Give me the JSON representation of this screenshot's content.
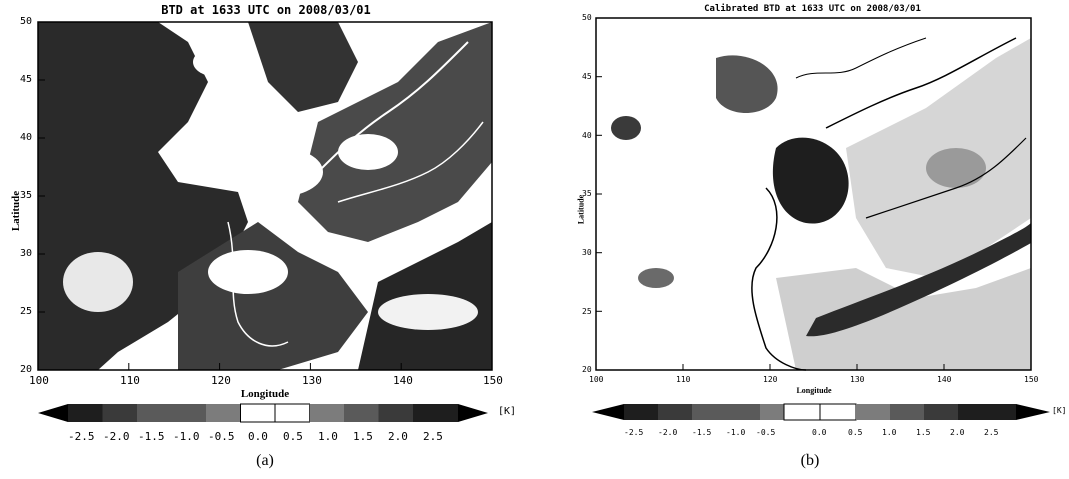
{
  "panels": [
    {
      "id": "a",
      "title": "BTD at 1633 UTC on 2008/03/01",
      "xlabel": "Longitude",
      "ylabel": "Latitude",
      "panel_label": "(a)",
      "x_ticks": [
        "100",
        "110",
        "120",
        "130",
        "140",
        "150"
      ],
      "y_ticks": [
        "20",
        "25",
        "30",
        "35",
        "40",
        "45",
        "50"
      ],
      "colorbar_ticks": [
        "-2.5",
        "-2.0",
        "-1.5",
        "-1.0",
        "-0.5",
        "0.0",
        "0.5",
        "1.0",
        "1.5",
        "2.0",
        "2.5"
      ],
      "colorbar_unit": "[K]",
      "map_extent": {
        "lon": [
          100,
          150
        ],
        "lat": [
          20,
          50
        ]
      }
    },
    {
      "id": "b",
      "title": "Calibrated BTD at 1633 UTC on 2008/03/01",
      "xlabel": "Longitude",
      "ylabel": "Latitude",
      "panel_label": "(b)",
      "x_ticks": [
        "100",
        "110",
        "120",
        "130",
        "140",
        "150"
      ],
      "y_ticks": [
        "20",
        "25",
        "30",
        "35",
        "40",
        "45",
        "50"
      ],
      "colorbar_ticks": [
        "-2.5",
        "-2.0",
        "-1.5",
        "-1.0",
        "-0.5",
        "0.0",
        "0.5",
        "1.0",
        "1.5",
        "2.0",
        "2.5"
      ],
      "colorbar_unit": "[K]",
      "map_extent": {
        "lon": [
          100,
          150
        ],
        "lat": [
          20,
          50
        ]
      }
    }
  ],
  "colorbar_colors": [
    "#000000",
    "#1e1e1e",
    "#3a3a3a",
    "#5a5a5a",
    "#7c7c7c",
    "#ffffff",
    "#ffffff",
    "#7c7c7c",
    "#5a5a5a",
    "#3a3a3a",
    "#1e1e1e",
    "#000000"
  ]
}
